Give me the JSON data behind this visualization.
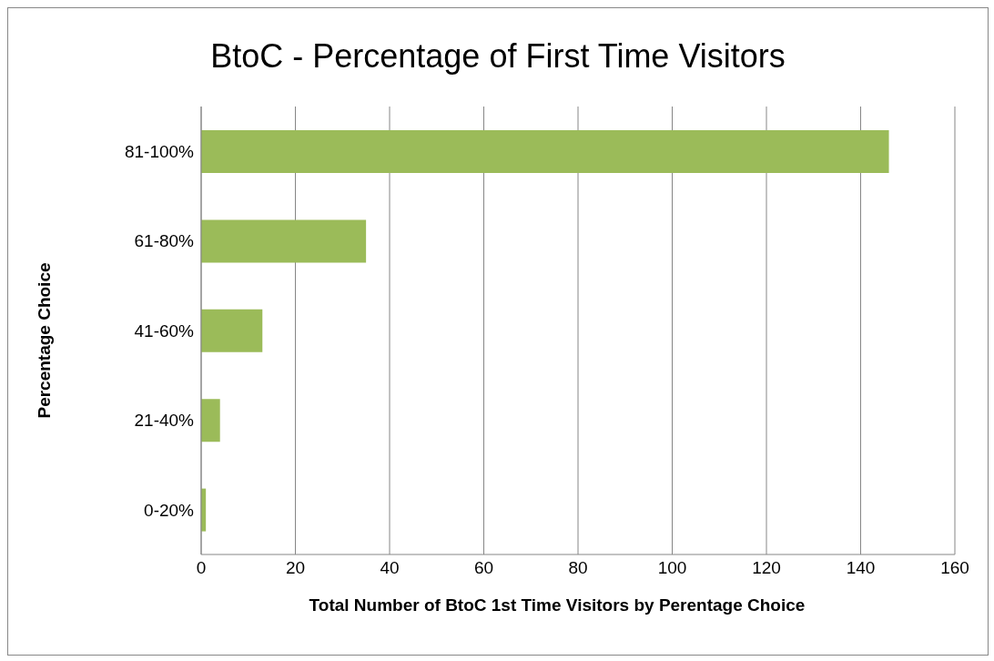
{
  "chart_data": {
    "type": "bar",
    "orientation": "horizontal",
    "title": "BtoC - Percentage of First Time Visitors",
    "xlabel": "Total Number of BtoC 1st Time Visitors by Perentage Choice",
    "ylabel": "Percentage Choice",
    "categories": [
      "81-100%",
      "61-80%",
      "41-60%",
      "21-40%",
      "0-20%"
    ],
    "values": [
      146,
      35,
      13,
      4,
      1
    ],
    "color": "#9bbb59",
    "xlim": [
      0,
      160
    ],
    "xticks": [
      0,
      20,
      40,
      60,
      80,
      100,
      120,
      140,
      160
    ],
    "grid": "x",
    "legend": false
  }
}
